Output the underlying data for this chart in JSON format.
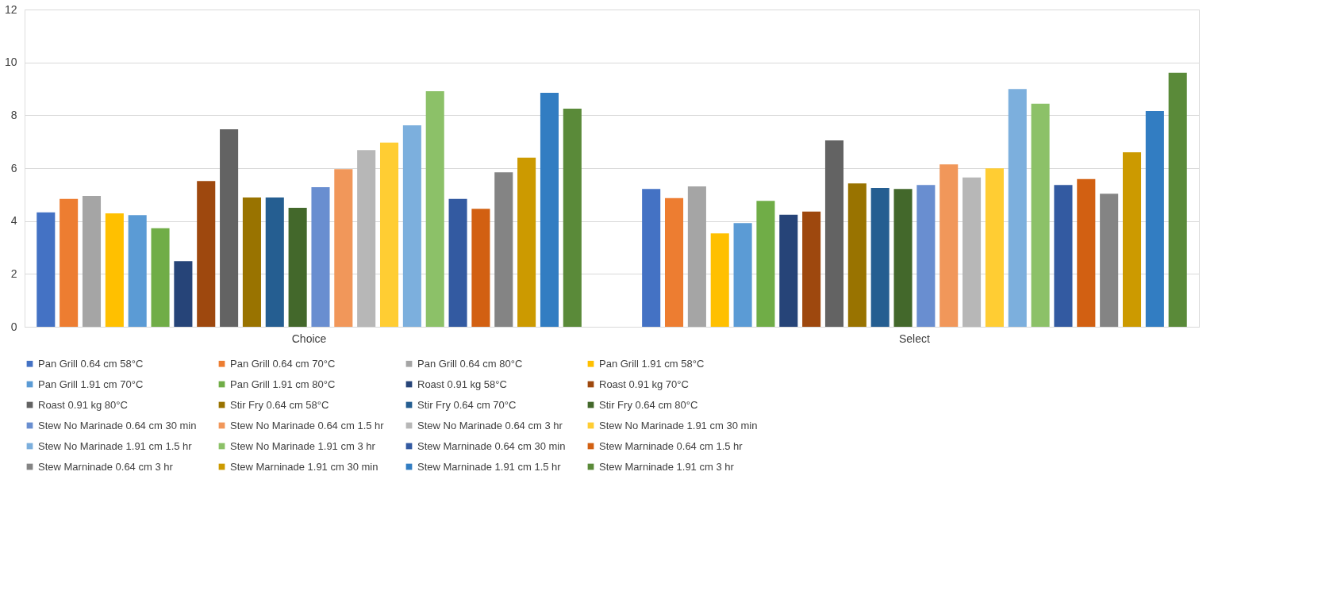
{
  "chart_data": {
    "type": "bar",
    "categories": [
      "Choice",
      "Select"
    ],
    "ylim": [
      0,
      12
    ],
    "yticks": [
      0,
      2,
      4,
      6,
      8,
      10,
      12
    ],
    "grid": "y",
    "legend": "bottom",
    "series": [
      {
        "name": "Pan Grill 0.64 cm 58°C",
        "color": "#4472c4",
        "values": [
          4.33,
          5.21
        ]
      },
      {
        "name": "Pan Grill 0.64 cm 70°C",
        "color": "#ed7d31",
        "values": [
          4.84,
          4.87
        ]
      },
      {
        "name": "Pan Grill 0.64 cm 80°C",
        "color": "#a5a5a5",
        "values": [
          4.95,
          5.31
        ]
      },
      {
        "name": "Pan Grill 1.91 cm 58°C",
        "color": "#ffc000",
        "values": [
          4.29,
          3.53
        ]
      },
      {
        "name": "Pan Grill 1.91 cm 70°C",
        "color": "#5b9bd5",
        "values": [
          4.22,
          3.92
        ]
      },
      {
        "name": "Pan Grill 1.91 cm 80°C",
        "color": "#70ad47",
        "values": [
          3.73,
          4.76
        ]
      },
      {
        "name": "Roast 0.91 kg 58°C",
        "color": "#264478",
        "values": [
          2.48,
          4.24
        ]
      },
      {
        "name": "Roast 0.91 kg 70°C",
        "color": "#9e480e",
        "values": [
          5.51,
          4.36
        ]
      },
      {
        "name": "Roast 0.91 kg 80°C",
        "color": "#636363",
        "values": [
          7.47,
          7.05
        ]
      },
      {
        "name": "Stir Fry 0.64 cm 58°C",
        "color": "#997300",
        "values": [
          4.89,
          5.42
        ]
      },
      {
        "name": "Stir Fry 0.64 cm 70°C",
        "color": "#255e91",
        "values": [
          4.89,
          5.25
        ]
      },
      {
        "name": "Stir Fry 0.64 cm  80°C",
        "color": "#43682b",
        "values": [
          4.5,
          5.21
        ]
      },
      {
        "name": "Stew No Marinade 0.64 cm 30 min",
        "color": "#698ed0",
        "values": [
          5.28,
          5.36
        ]
      },
      {
        "name": "Stew No Marinade 0.64 cm 1.5 hr",
        "color": "#f1975a",
        "values": [
          5.96,
          6.14
        ]
      },
      {
        "name": "Stew No Marinade 0.64 cm 3 hr",
        "color": "#b7b7b7",
        "values": [
          6.68,
          5.65
        ]
      },
      {
        "name": "Stew No Marinade 1.91 cm 30 min",
        "color": "#ffcd33",
        "values": [
          6.97,
          5.99
        ]
      },
      {
        "name": "Stew No Marinade 1.91 cm 1.5 hr",
        "color": "#7cafdd",
        "values": [
          7.62,
          8.99
        ]
      },
      {
        "name": "Stew No Marinade 1.91 cm 3 hr",
        "color": "#8cc168",
        "values": [
          8.91,
          8.44
        ]
      },
      {
        "name": "Stew Marninade 0.64 cm 30 min",
        "color": "#335aa1",
        "values": [
          4.84,
          5.36
        ]
      },
      {
        "name": "Stew Marninade 0.64 cm 1.5 hr",
        "color": "#d26012",
        "values": [
          4.46,
          5.59
        ]
      },
      {
        "name": "Stew Marninade 0.64 cm 3 hr",
        "color": "#848484",
        "values": [
          5.84,
          5.03
        ]
      },
      {
        "name": "Stew Marninade 1.91 cm 30 min",
        "color": "#cc9a00",
        "values": [
          6.4,
          6.6
        ]
      },
      {
        "name": "Stew Marninade 1.91 cm  1.5 hr",
        "color": "#327dc2",
        "values": [
          8.85,
          8.16
        ]
      },
      {
        "name": "Stew Marninade 1.91 cm 3 hr",
        "color": "#5a8a39",
        "values": [
          8.25,
          9.61
        ]
      }
    ]
  }
}
